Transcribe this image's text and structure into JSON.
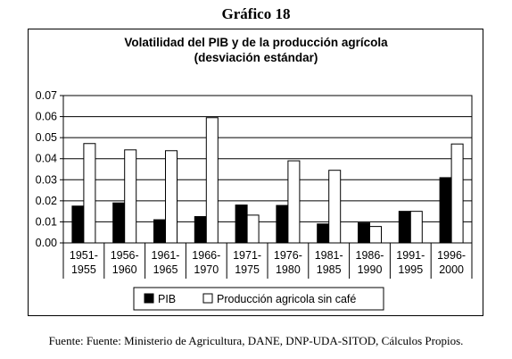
{
  "heading": "Gráfico 18",
  "source": "Fuente: Fuente: Ministerio de Agricultura, DANE, DNP-UDA-SITOD, Cálculos Propios.",
  "chart_data": {
    "type": "bar",
    "title_lines": [
      "Volatilidad del PIB y de la producción agrícola",
      "(desviación estándar)"
    ],
    "categories": [
      [
        "1951-",
        "1955"
      ],
      [
        "1956-",
        "1960"
      ],
      [
        "1961-",
        "1965"
      ],
      [
        "1966-",
        "1970"
      ],
      [
        "1971-",
        "1975"
      ],
      [
        "1976-",
        "1980"
      ],
      [
        "1981-",
        "1985"
      ],
      [
        "1986-",
        "1990"
      ],
      [
        "1991-",
        "1995"
      ],
      [
        "1996-",
        "2000"
      ]
    ],
    "series": [
      {
        "name": "PIB",
        "color": "#000000",
        "values": [
          0.0175,
          0.019,
          0.011,
          0.0125,
          0.018,
          0.0178,
          0.009,
          0.0095,
          0.015,
          0.031
        ]
      },
      {
        "name": "Producción agricola sin café",
        "color": "#ffffff",
        "values": [
          0.0472,
          0.0442,
          0.0438,
          0.0595,
          0.0132,
          0.039,
          0.0345,
          0.0078,
          0.015,
          0.047
        ]
      }
    ],
    "yticks": [
      "0.00",
      "0.01",
      "0.02",
      "0.03",
      "0.04",
      "0.05",
      "0.06",
      "0.07"
    ],
    "ylim": [
      0,
      0.07
    ],
    "grid": true,
    "legend_position": "bottom"
  }
}
